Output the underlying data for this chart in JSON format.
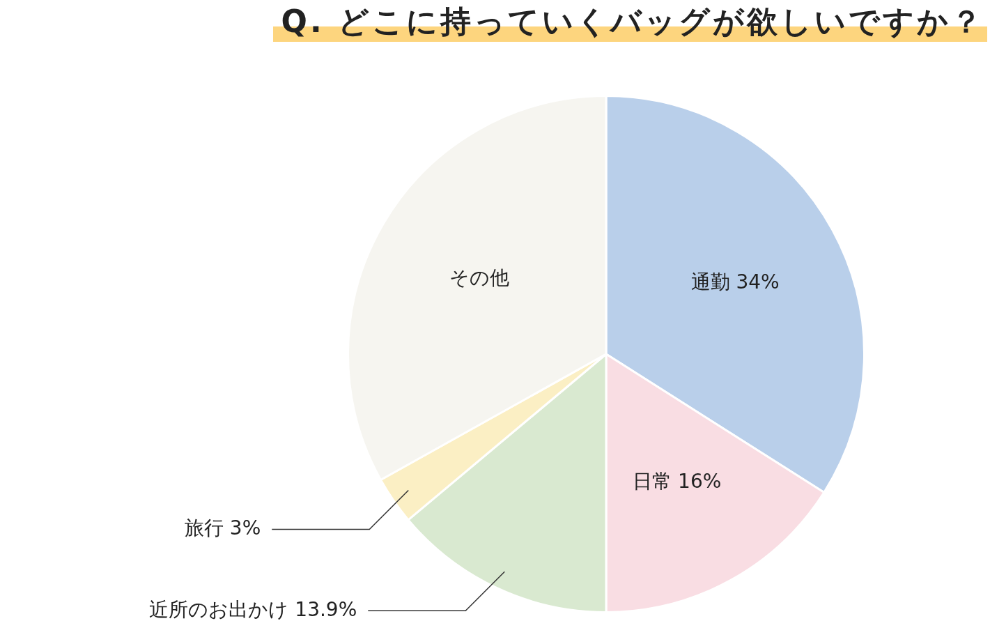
{
  "chart_data": {
    "type": "pie",
    "title": "Q. どこに持っていくバッグが欲しいですか？",
    "categories": [
      "通勤",
      "日常",
      "近所のお出かけ",
      "旅行",
      "その他"
    ],
    "values": [
      34,
      16,
      13.9,
      3,
      33.1
    ],
    "value_labels": [
      "34%",
      "16%",
      "13.9%",
      "3%",
      null
    ],
    "colors": [
      "#b9cfea",
      "#f9dde3",
      "#d9e9d0",
      "#fbefc4",
      "#f6f5f0"
    ],
    "legend": false
  }
}
